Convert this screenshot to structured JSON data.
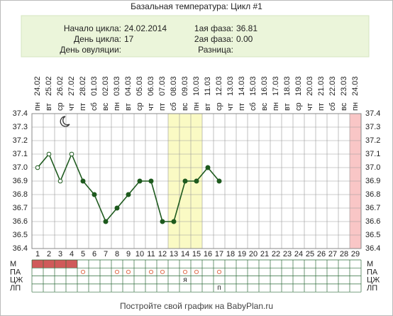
{
  "chart_data": {
    "type": "line",
    "title": "Базальная температура: Цикл #1",
    "info": {
      "left": [
        {
          "label": "Начало цикла:",
          "value": "24.02.2014"
        },
        {
          "label": "День цикла:",
          "value": "17"
        },
        {
          "label": "День овуляции:",
          "value": ""
        }
      ],
      "right": [
        {
          "label": "1ая фаза:",
          "value": "36.81"
        },
        {
          "label": "2ая фаза:",
          "value": "0.00"
        },
        {
          "label": "Разница:",
          "value": ""
        }
      ]
    },
    "x": [
      1,
      2,
      3,
      4,
      5,
      6,
      7,
      8,
      9,
      10,
      11,
      12,
      13,
      14,
      15,
      16,
      17,
      18,
      19,
      20,
      21,
      22,
      23,
      24,
      25,
      26,
      27,
      28,
      29
    ],
    "dates": [
      "24.02",
      "25.02",
      "26.02",
      "27.02",
      "28.02",
      "01.03",
      "02.03",
      "03.03",
      "04.03",
      "05.03",
      "06.03",
      "07.03",
      "08.03",
      "09.03",
      "10.03",
      "11.03",
      "12.03",
      "13.03",
      "14.03",
      "15.03",
      "16.03",
      "17.03",
      "18.03",
      "19.03",
      "20.03",
      "21.03",
      "22.03",
      "23.03",
      "24.03"
    ],
    "weekdays": [
      "пн",
      "вт",
      "ср",
      "чт",
      "пт",
      "сб",
      "вс",
      "пн",
      "вт",
      "ср",
      "чт",
      "пт",
      "сб",
      "вс",
      "пн",
      "вт",
      "ср",
      "чт",
      "пт",
      "сб",
      "вс",
      "пн",
      "вт",
      "ср",
      "чт",
      "пт",
      "сб",
      "вс",
      "пн"
    ],
    "values": [
      37,
      37.1,
      36.9,
      37.1,
      36.9,
      36.8,
      36.6,
      36.7,
      36.8,
      36.9,
      36.9,
      36.6,
      36.6,
      36.9,
      36.9,
      37,
      36.9,
      null,
      null,
      null,
      null,
      null,
      null,
      null,
      null,
      null,
      null,
      null,
      null
    ],
    "marker_styles": [
      "open",
      "open",
      "open",
      "open",
      "filled",
      "filled",
      "filled",
      "filled",
      "filled",
      "filled",
      "filled",
      "filled",
      "filled",
      "filled",
      "filled",
      "filled",
      "filled",
      null,
      null,
      null,
      null,
      null,
      null,
      null,
      null,
      null,
      null,
      null,
      null
    ],
    "color": "#1e5a1e",
    "xlim": [
      0.5,
      29.5
    ],
    "ylim": [
      36.4,
      37.4
    ],
    "yticks": [
      36.4,
      36.5,
      36.6,
      36.7,
      36.8,
      36.9,
      {
        "value": 37,
        "label": "37.0"
      },
      37.1,
      37.2,
      37.3,
      37.4
    ],
    "grid": true,
    "bands": [
      {
        "from": 13,
        "to": 15,
        "color": "#fafac4"
      },
      {
        "from": 29,
        "to": 29,
        "color": "#f9c6c6"
      }
    ],
    "rows": [
      {
        "label": "М",
        "fill_days": [
          1,
          2,
          3,
          4
        ],
        "color": "#d05a5a"
      },
      {
        "label": "ПА",
        "circle_days": [
          5,
          8,
          9,
          11,
          12,
          14,
          15,
          17
        ],
        "color": "#e07050"
      },
      {
        "label": "ЦЖ",
        "texts": [
          {
            "day": 14,
            "text": "я"
          }
        ]
      },
      {
        "label": "ЛП",
        "texts": [
          {
            "day": 17,
            "text": "п"
          }
        ]
      }
    ],
    "footer": "Постройте свой график на BabyPlan.ru"
  }
}
